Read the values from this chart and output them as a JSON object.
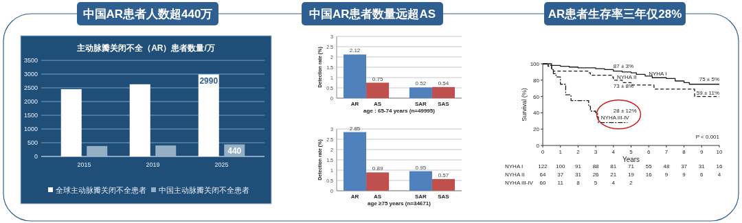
{
  "chart_data": [
    {
      "type": "bar",
      "subtitle": "中国AR患者人数超440万",
      "title": "主动脉瓣关闭不全（AR）患者数量/万",
      "categories": [
        "2015",
        "2019",
        "2025"
      ],
      "series": [
        {
          "name": "全球主动脉瓣关闭不全患者",
          "color": "#ffffff",
          "values": [
            2450,
            2630,
            2990
          ],
          "value_labels": [
            null,
            null,
            "2990"
          ]
        },
        {
          "name": "中国主动脉瓣关闭不全患者",
          "color": "#95afc5",
          "values": [
            380,
            400,
            440
          ],
          "value_labels": [
            null,
            null,
            "440"
          ]
        }
      ],
      "ylim": [
        0,
        3500
      ],
      "yticks": [
        0,
        500,
        1000,
        1500,
        2000,
        2500,
        3000,
        3500
      ],
      "grid": "y",
      "legend": "bottom"
    },
    {
      "type": "bar",
      "subtitle": "中国AR患者数量远超AS",
      "categories": [
        "AR",
        "AS",
        "SAR",
        "SAS"
      ],
      "values": [
        2.12,
        0.75,
        0.52,
        0.54
      ],
      "colors": [
        "#4f81bd",
        "#c0504d",
        "#4f81bd",
        "#c0504d"
      ],
      "ylabel": "Detection rate (%)",
      "xlabel": "age : 65-74 years (n=49995)",
      "ylim": [
        0,
        3
      ],
      "yticks": [
        0,
        0.5,
        1,
        1.5,
        2,
        2.5,
        3
      ],
      "grid": "y",
      "data_labels": true
    },
    {
      "type": "bar",
      "categories": [
        "AR",
        "AS",
        "SAR",
        "SAS"
      ],
      "values": [
        2.85,
        0.89,
        0.95,
        0.57
      ],
      "colors": [
        "#4f81bd",
        "#c0504d",
        "#4f81bd",
        "#c0504d"
      ],
      "ylabel": "Detection rate (%)",
      "xlabel": "age ≥75 years (n=34671)",
      "ylim": [
        0,
        3
      ],
      "yticks": [
        0,
        0.5,
        1,
        1.5,
        2,
        2.5,
        3
      ],
      "grid": "y",
      "data_labels": true
    },
    {
      "type": "step",
      "subtitle": "AR患者生存率三年仅28%",
      "xlabel": "Years",
      "ylabel": "Survival (%)",
      "xlim": [
        0,
        10
      ],
      "xticks": [
        0,
        1,
        2,
        3,
        4,
        5,
        6,
        7,
        8,
        9,
        10
      ],
      "ylim": [
        0,
        100
      ],
      "yticks": [
        0,
        20,
        40,
        60,
        80,
        100
      ],
      "series": [
        {
          "name": "NYHA I",
          "color": "#1a1a1a",
          "line_style": "solid",
          "x": [
            0,
            0.5,
            1,
            1.5,
            2,
            3,
            3.5,
            4,
            4.5,
            5,
            5.3,
            5.8,
            6.2,
            7,
            7.5,
            8,
            8.3,
            10
          ],
          "values": [
            100,
            98,
            97,
            96,
            95,
            94,
            93,
            91,
            90,
            89,
            87,
            85,
            83,
            82,
            79,
            77,
            75,
            75
          ]
        },
        {
          "name": "NYHA II",
          "color": "#1a1a1a",
          "line_style": "dashed",
          "x": [
            0,
            0.3,
            0.5,
            0.6,
            2.5,
            2.6,
            2.7,
            3.8,
            3.9,
            4,
            4.5,
            5,
            6.2,
            6.3,
            8.5,
            8.6,
            10
          ],
          "values": [
            100,
            97,
            94,
            91,
            91,
            89,
            86,
            86,
            84,
            80,
            77,
            74,
            74,
            69,
            69,
            60,
            60
          ]
        },
        {
          "name": "NYHA III-IV",
          "color": "#1a1a1a",
          "line_style": "dotted",
          "x": [
            0,
            0.3,
            0.5,
            0.6,
            0.75,
            1,
            1.3,
            1.6,
            2.5,
            2.6,
            2.7,
            3,
            3.1,
            3.15,
            4.8
          ],
          "values": [
            100,
            98,
            93,
            88,
            84,
            75,
            62,
            55,
            55,
            48,
            42,
            40,
            35,
            28,
            28
          ]
        }
      ],
      "annotations": [
        "87 ± 3%",
        "75 ± 5%",
        "73 ± 8%",
        "59 ± 11%",
        "28 ± 12%",
        "P < 0.001"
      ]
    },
    {
      "type": "heatmap",
      "data_labels": true,
      "categories": [
        null,
        null,
        null,
        null,
        null,
        null,
        null,
        null,
        null,
        null,
        null
      ],
      "y_categories": [
        "NYHA I",
        "NYHA II",
        "NYHA III-IV"
      ],
      "cells": [
        [
          122,
          100,
          91,
          88,
          81,
          71,
          55,
          48,
          37,
          31,
          16
        ],
        [
          64,
          37,
          31,
          26,
          21,
          19,
          16,
          9,
          9,
          6,
          4
        ],
        [
          60,
          11,
          8,
          5,
          4,
          2,
          null,
          null,
          null,
          null,
          null
        ]
      ]
    }
  ]
}
